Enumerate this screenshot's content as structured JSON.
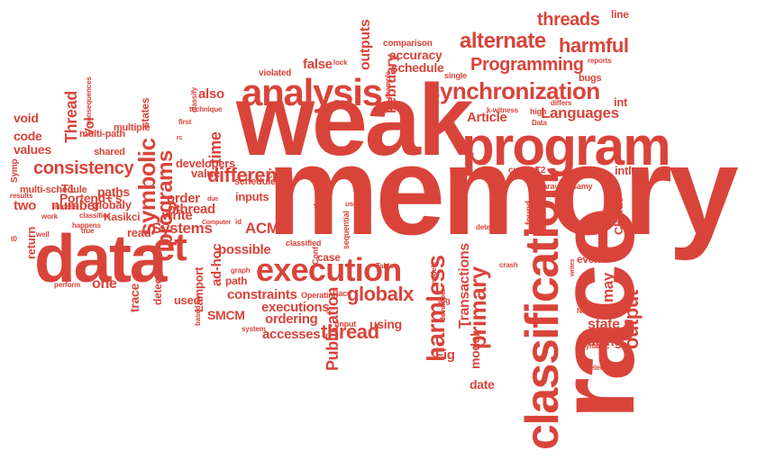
{
  "colors": {
    "word": "#d9443a",
    "background": "#ffffff"
  },
  "words": [
    "memory",
    "weak",
    "race",
    "data",
    "program",
    "classification",
    "analysis",
    "execution",
    "synchronization",
    "et",
    "alternate",
    "harmful",
    "Programming",
    "threads",
    "thread",
    "harmless",
    "globalx",
    "consistency",
    "Languages",
    "Article",
    "symbolic",
    "programs",
    "different",
    "Systems",
    "ACM",
    "primary",
    "output",
    "state",
    "may",
    "model",
    "Publication",
    "Transactions",
    "Fig",
    "date",
    "accuracy",
    "schedule",
    "February",
    "outputs",
    "false",
    "time",
    "also",
    "pthread",
    "executions",
    "ordering",
    "accesses",
    "constraints",
    "SMCM",
    "racing",
    "Portend+'s",
    "two",
    "number",
    "T1",
    "paths",
    "globaly",
    "Kasikci",
    "multi-schedule",
    "values",
    "code",
    "void",
    "Thread",
    "Vol",
    "multi-path",
    "shared",
    "multiple",
    "states",
    "consequences",
    "Symp",
    "return",
    "read",
    "one",
    "trace",
    "detection",
    "used",
    "Lamport",
    "ad-hoc",
    "path",
    "possible",
    "order",
    "write",
    "value",
    "developers",
    "inputs",
    "schedules",
    "using",
    "case",
    "classified",
    "line",
    "int",
    "intl",
    "Cloud9",
    "even",
    "found",
    "Narayanasamy",
    "current",
    "T2",
    "k-witness",
    "high",
    "bugs",
    "reports",
    "differs",
    "Data",
    "tool",
    "comparison",
    "single",
    "lock",
    "violated",
    "technique",
    "first",
    "example",
    "Computer",
    "id",
    "Conf",
    "sequential",
    "main",
    "detectors",
    "t1",
    "use",
    "crash",
    "developer",
    "arg",
    "models",
    "Table",
    "input",
    "Race",
    "Operating",
    "system",
    "graph",
    "based",
    "perform",
    "results",
    "well",
    "work",
    "access",
    "classifies",
    "happens",
    "true",
    "i.e",
    "due",
    "rc",
    "c++",
    "dynamic",
    "detector",
    "writes",
    "Note",
    "t0",
    "classify"
  ]
}
